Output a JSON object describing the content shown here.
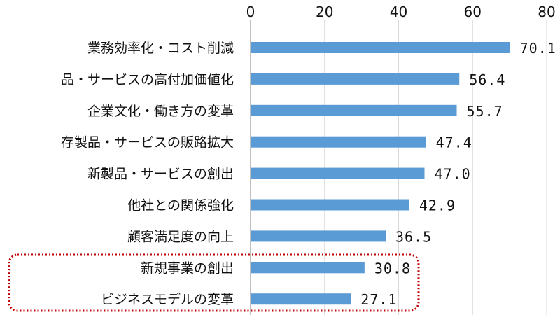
{
  "chart_data": {
    "type": "bar",
    "orientation": "horizontal",
    "categories": [
      "業務効率化・コスト削減",
      "品・サービスの高付加価値化",
      "企業文化・働き方の変革",
      "存製品・サービスの販路拡大",
      "新製品・サービスの創出",
      "他社との関係強化",
      "顧客満足度の向上",
      "新規事業の創出",
      "ビジネスモデルの変革"
    ],
    "values": [
      70.1,
      56.4,
      55.7,
      47.4,
      47.0,
      42.9,
      36.5,
      30.8,
      27.1
    ],
    "value_labels": [
      "70.1",
      "56.4",
      "55.7",
      "47.4",
      "47.0",
      "42.9",
      "36.5",
      "30.8",
      "27.1"
    ],
    "xlim": [
      0,
      80
    ],
    "xticks": [
      "0",
      "20",
      "40",
      "60",
      "80"
    ],
    "axis_position": "top",
    "grid": true,
    "bar_color": "#5b9bd5",
    "highlight": {
      "categories": [
        "新規事業の創出",
        "ビジネスモデルの変革"
      ],
      "color": "#c00000",
      "style": "dotted"
    }
  }
}
